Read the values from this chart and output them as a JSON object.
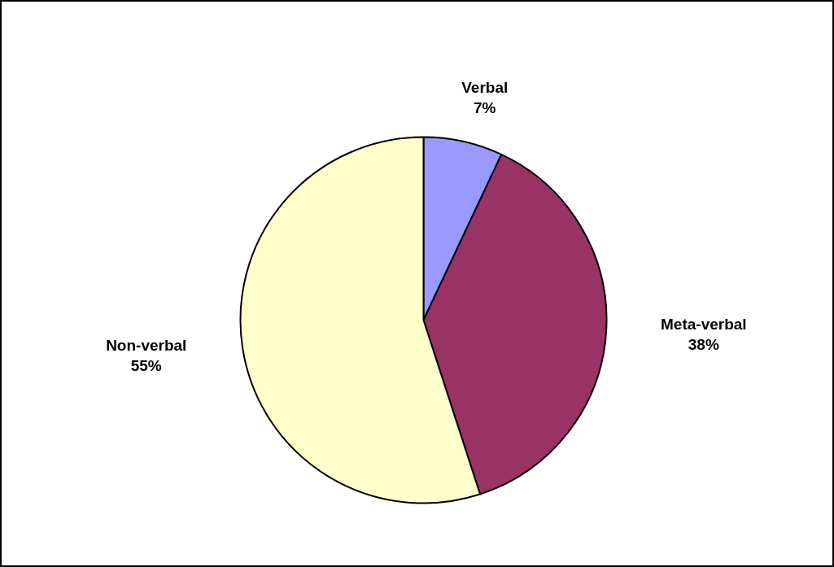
{
  "chart_data": {
    "type": "pie",
    "categories": [
      "Verbal",
      "Meta-verbal",
      "Non-verbal"
    ],
    "values": [
      7,
      38,
      55
    ],
    "colors": [
      "#9999ff",
      "#993366",
      "#ffffcc"
    ],
    "value_labels": [
      "7%",
      "38%",
      "55%"
    ]
  }
}
